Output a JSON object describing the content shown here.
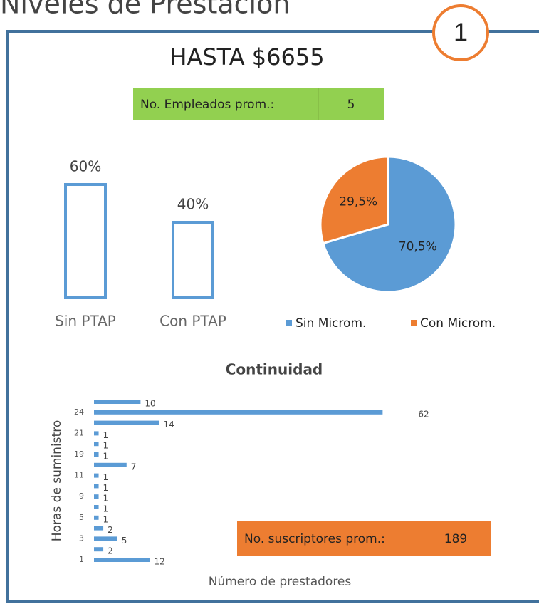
{
  "header": {
    "title": "Niveles de Prestación",
    "badge": "1",
    "level": "HASTA $6655"
  },
  "employees": {
    "label": "No. Empleados prom.:",
    "value": 5
  },
  "subscribers": {
    "label": "No. suscriptores prom.:",
    "value": 189
  },
  "chart_data": [
    {
      "type": "bar",
      "categories": [
        "Sin PTAP",
        "Con PTAP"
      ],
      "values": [
        60,
        40
      ],
      "value_labels": [
        "60%",
        "40%"
      ],
      "ylim": [
        0,
        60
      ],
      "color": "#5b9bd5"
    },
    {
      "type": "pie",
      "categories": [
        "Sin Microm.",
        "Con Microm."
      ],
      "values": [
        70.5,
        29.5
      ],
      "value_labels": [
        "70,5%",
        "29,5%"
      ],
      "colors": [
        "#5b9bd5",
        "#ed7d31"
      ],
      "legend": "bottom"
    },
    {
      "type": "hbar",
      "title": "Continuidad",
      "y_label": "Horas de suministro",
      "x_label": "Número de prestadores",
      "categories": [
        null,
        "24",
        null,
        "21",
        null,
        "19",
        null,
        "11",
        null,
        "9",
        null,
        "5",
        null,
        "3",
        null,
        "1"
      ],
      "values": [
        10,
        62,
        14,
        1,
        1,
        1,
        7,
        1,
        1,
        1,
        1,
        1,
        2,
        5,
        2,
        12
      ],
      "xlim": [
        0,
        65
      ],
      "color": "#5b9bd5"
    }
  ]
}
